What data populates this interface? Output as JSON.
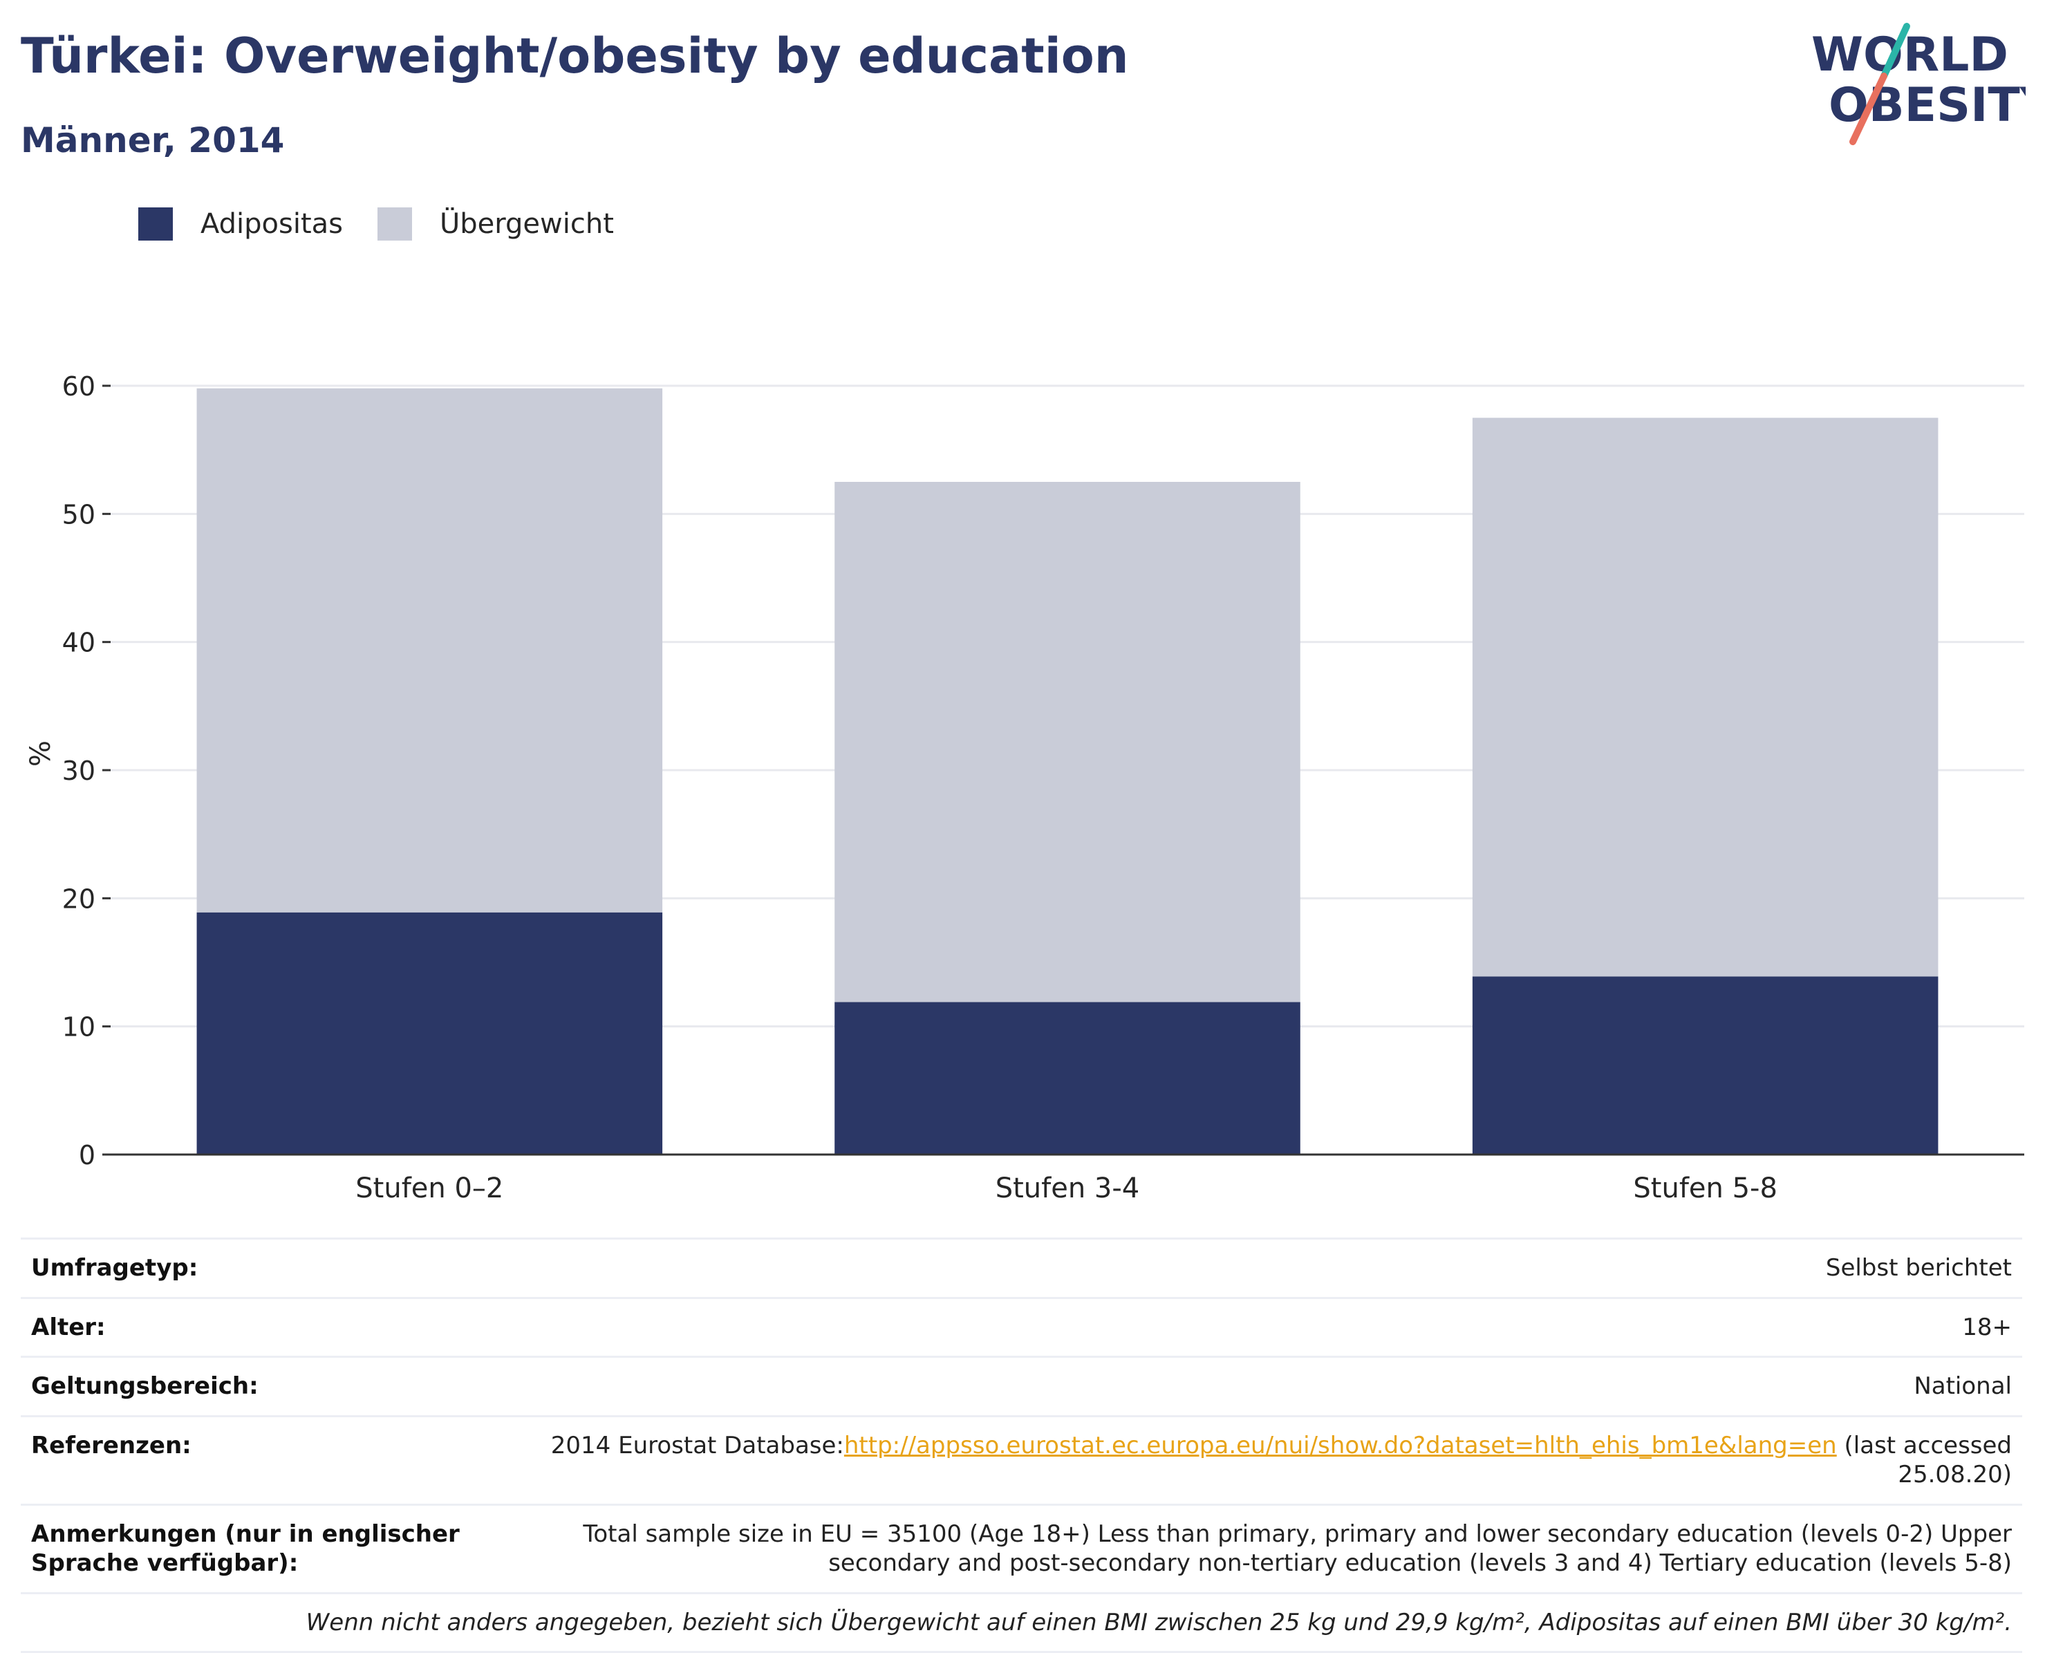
{
  "header": {
    "title": "Türkei: Overweight/obesity by education",
    "subtitle": "Männer, 2014",
    "logo_line1": "WORLD",
    "logo_line2": "OBESITY"
  },
  "colors": {
    "adipositas": "#2b3766",
    "uebergewicht": "#c9ccd8",
    "title": "#2b3766",
    "link": "#e8a317",
    "logo_teal": "#2bb5a8",
    "logo_coral": "#e8705e"
  },
  "chart_data": {
    "type": "bar",
    "stacked": true,
    "categories": [
      "Stufen 0–2",
      "Stufen 3-4",
      "Stufen 5-8"
    ],
    "series": [
      {
        "name": "Adipositas",
        "values": [
          18.9,
          11.9,
          13.9
        ]
      },
      {
        "name": "Übergewicht",
        "values": [
          40.9,
          40.6,
          43.6
        ]
      }
    ],
    "ylabel": "%",
    "ylim": [
      0,
      60
    ],
    "yticks": [
      0,
      10,
      20,
      30,
      40,
      50,
      60
    ],
    "grid": true,
    "legend_position": "top-left"
  },
  "info": {
    "rows": [
      {
        "label": "Umfragetyp:",
        "value": "Selbst berichtet"
      },
      {
        "label": "Alter:",
        "value": "18+"
      },
      {
        "label": "Geltungsbereich:",
        "value": "National"
      }
    ],
    "references": {
      "label": "Referenzen:",
      "prefix": "2014 Eurostat Database:",
      "link": "http://appsso.eurostat.ec.europa.eu/nui/show.do?dataset=hlth_ehis_bm1e&lang=en",
      "suffix": " (last accessed 25.08.20)"
    },
    "notes": {
      "label": "Anmerkungen (nur in englischer Sprache verfügbar):",
      "value": "Total sample size in EU = 35100 (Age 18+) Less than primary, primary and lower secondary education (levels 0-2) Upper secondary and post-secondary non-tertiary education (levels 3 and 4) Tertiary education (levels 5-8)"
    },
    "footnote": "Wenn nicht anders angegeben, bezieht sich Übergewicht auf einen BMI zwischen 25 kg und 29,9 kg/m², Adipositas auf einen BMI über 30 kg/m²."
  }
}
